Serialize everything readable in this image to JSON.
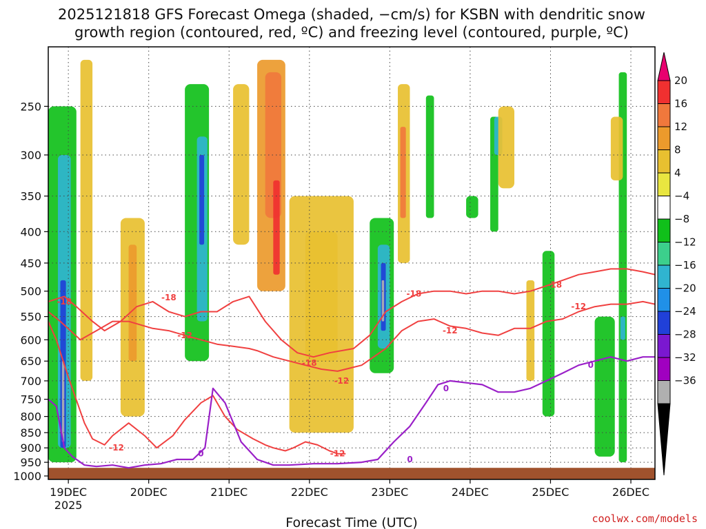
{
  "chart_data": {
    "type": "heatmap",
    "title_lines": [
      "2025121818 GFS Forecast Omega (shaded, −cm/s) for KSBN with dendritic snow",
      "growth region (contoured, red, ºC) and freezing level (contoured, purple, ºC)"
    ],
    "xlabel": "Forecast Time (UTC)",
    "ylabel": "",
    "source": "coolwx.com/models",
    "x_tick_labels": [
      "19DEC",
      "20DEC",
      "21DEC",
      "22DEC",
      "23DEC",
      "24DEC",
      "25DEC",
      "26DEC"
    ],
    "x_year_label": "2025",
    "y_tick_labels": [
      "250",
      "300",
      "350",
      "400",
      "450",
      "500",
      "550",
      "600",
      "650",
      "700",
      "750",
      "800",
      "850",
      "900",
      "950",
      "1000"
    ],
    "y_axis": {
      "units": "hPa",
      "range": [
        200,
        1013
      ],
      "inverted": true
    },
    "x_axis": {
      "units": "days since 2025-12-18 18UTC",
      "range": [
        0.0,
        7.55
      ]
    },
    "colorbar": {
      "labels": [
        "20",
        "16",
        "12",
        "8",
        "4",
        "−4",
        "−8",
        "−12",
        "−16",
        "−20",
        "−24",
        "−28",
        "−32",
        "−36"
      ],
      "colors": [
        "#e8006f",
        "#f03030",
        "#f0783c",
        "#ec9a2c",
        "#e8c030",
        "#e9e640",
        "#ffffff",
        "#10c01a",
        "#3ccf8c",
        "#30b4d0",
        "#2090e8",
        "#2040d8",
        "#7a18d0",
        "#a000c0",
        "#b0b0b0",
        "#000000"
      ]
    },
    "shading": [
      {
        "t": [
          0.0,
          0.35
        ],
        "p": [
          250,
          950
        ],
        "v": -8
      },
      {
        "t": [
          0.12,
          0.28
        ],
        "p": [
          300,
          900
        ],
        "v": -16
      },
      {
        "t": [
          0.15,
          0.22
        ],
        "p": [
          480,
          900
        ],
        "v": -24
      },
      {
        "t": [
          0.17,
          0.2
        ],
        "p": [
          650,
          880
        ],
        "v": -36
      },
      {
        "t": [
          0.4,
          0.55
        ],
        "p": [
          210,
          700
        ],
        "v": 6
      },
      {
        "t": [
          0.9,
          1.2
        ],
        "p": [
          380,
          800
        ],
        "v": 6
      },
      {
        "t": [
          1.0,
          1.1
        ],
        "p": [
          420,
          650
        ],
        "v": 10
      },
      {
        "t": [
          1.7,
          2.0
        ],
        "p": [
          230,
          650
        ],
        "v": -8
      },
      {
        "t": [
          1.85,
          1.98
        ],
        "p": [
          280,
          560
        ],
        "v": -16
      },
      {
        "t": [
          1.88,
          1.94
        ],
        "p": [
          300,
          420
        ],
        "v": -24
      },
      {
        "t": [
          2.3,
          2.5
        ],
        "p": [
          230,
          420
        ],
        "v": 6
      },
      {
        "t": [
          2.6,
          2.95
        ],
        "p": [
          210,
          500
        ],
        "v": 8
      },
      {
        "t": [
          2.7,
          2.9
        ],
        "p": [
          220,
          380
        ],
        "v": 12
      },
      {
        "t": [
          2.8,
          2.88
        ],
        "p": [
          330,
          470
        ],
        "v": 16
      },
      {
        "t": [
          3.0,
          3.8
        ],
        "p": [
          350,
          850
        ],
        "v": 5
      },
      {
        "t": [
          3.2,
          3.6
        ],
        "p": [
          400,
          650
        ],
        "v": 6
      },
      {
        "t": [
          4.0,
          4.3
        ],
        "p": [
          380,
          680
        ],
        "v": -8
      },
      {
        "t": [
          4.1,
          4.25
        ],
        "p": [
          420,
          620
        ],
        "v": -16
      },
      {
        "t": [
          4.14,
          4.2
        ],
        "p": [
          450,
          580
        ],
        "v": -24
      },
      {
        "t": [
          4.15,
          4.18
        ],
        "p": [
          480,
          560
        ],
        "v": -36
      },
      {
        "t": [
          4.35,
          4.5
        ],
        "p": [
          230,
          450
        ],
        "v": 6
      },
      {
        "t": [
          4.38,
          4.45
        ],
        "p": [
          270,
          380
        ],
        "v": 14
      },
      {
        "t": [
          4.7,
          4.8
        ],
        "p": [
          240,
          380
        ],
        "v": -8
      },
      {
        "t": [
          5.2,
          5.35
        ],
        "p": [
          350,
          380
        ],
        "v": -8
      },
      {
        "t": [
          5.5,
          5.6
        ],
        "p": [
          260,
          400
        ],
        "v": -8
      },
      {
        "t": [
          5.55,
          5.65
        ],
        "p": [
          260,
          300
        ],
        "v": -16
      },
      {
        "t": [
          5.6,
          5.8
        ],
        "p": [
          250,
          340
        ],
        "v": 6
      },
      {
        "t": [
          5.95,
          6.05
        ],
        "p": [
          480,
          700
        ],
        "v": 6
      },
      {
        "t": [
          6.15,
          6.3
        ],
        "p": [
          430,
          800
        ],
        "v": -8
      },
      {
        "t": [
          6.8,
          7.05
        ],
        "p": [
          550,
          930
        ],
        "v": -8
      },
      {
        "t": [
          7.1,
          7.2
        ],
        "p": [
          220,
          950
        ],
        "v": -8
      },
      {
        "t": [
          7.12,
          7.18
        ],
        "p": [
          550,
          600
        ],
        "v": -16
      },
      {
        "t": [
          7.0,
          7.15
        ],
        "p": [
          260,
          330
        ],
        "v": 6
      }
    ],
    "red_contour_labels": [
      "-18",
      "-18",
      "-12",
      "-12",
      "-18",
      "-12",
      "-12",
      "-18",
      "-12",
      "-18",
      "-12"
    ],
    "purple_contour_labels": [
      "0",
      "0",
      "0",
      "0"
    ],
    "series": [
      {
        "name": "dgz_minus12_upper",
        "x": [
          0.0,
          0.15,
          0.4,
          0.6,
          0.8,
          1.0,
          1.3,
          1.5,
          1.7,
          1.9,
          2.1,
          2.3,
          2.5,
          2.6,
          2.8,
          3.0,
          3.2,
          3.4,
          3.6,
          3.9,
          4.2,
          4.4,
          4.6,
          4.8,
          5.0,
          5.2,
          5.4,
          5.6,
          5.8,
          6.0,
          6.2,
          6.4,
          6.6,
          6.8,
          7.0,
          7.2,
          7.4,
          7.55
        ],
        "p": [
          540,
          560,
          600,
          580,
          560,
          560,
          575,
          580,
          590,
          600,
          610,
          615,
          620,
          625,
          640,
          650,
          660,
          670,
          675,
          660,
          620,
          580,
          560,
          555,
          570,
          575,
          585,
          590,
          575,
          575,
          560,
          555,
          540,
          530,
          525,
          525,
          520,
          525
        ]
      },
      {
        "name": "dgz_minus12_lower",
        "x": [
          0.0,
          0.1,
          0.25,
          0.45,
          0.55,
          0.7,
          0.8,
          1.0,
          1.2,
          1.35,
          1.55,
          1.7,
          1.9,
          2.05,
          2.2,
          2.35,
          2.55,
          2.7,
          2.8,
          2.95,
          3.05,
          3.2,
          3.35,
          3.5,
          3.6,
          3.7
        ],
        "p": [
          560,
          600,
          690,
          820,
          870,
          890,
          860,
          820,
          860,
          900,
          860,
          810,
          760,
          740,
          800,
          840,
          870,
          890,
          900,
          910,
          900,
          880,
          890,
          910,
          920,
          920
        ]
      },
      {
        "name": "dgz_minus18",
        "x": [
          0.0,
          0.2,
          0.35,
          0.55,
          0.7,
          0.9,
          1.1,
          1.3,
          1.5,
          1.7,
          1.9,
          2.1,
          2.3,
          2.5,
          2.7,
          2.9,
          3.1,
          3.3,
          3.5,
          3.8,
          4.0,
          4.2,
          4.4,
          4.6,
          4.8,
          5.0,
          5.2,
          5.4,
          5.6,
          5.8,
          6.0,
          6.2,
          6.4,
          6.6,
          6.8,
          7.0,
          7.2,
          7.4,
          7.55
        ],
        "p": [
          520,
          510,
          530,
          560,
          580,
          560,
          530,
          520,
          540,
          550,
          540,
          540,
          520,
          510,
          560,
          600,
          630,
          640,
          630,
          620,
          590,
          540,
          520,
          505,
          500,
          500,
          505,
          500,
          500,
          505,
          500,
          490,
          480,
          470,
          465,
          460,
          460,
          465,
          470
        ]
      },
      {
        "name": "freezing_level_0C",
        "x": [
          0.0,
          0.1,
          0.2,
          0.3,
          0.45,
          0.6,
          0.8,
          1.0,
          1.2,
          1.4,
          1.6,
          1.8,
          1.95,
          2.05,
          2.2,
          2.4,
          2.6,
          2.8,
          3.0,
          3.3,
          3.6,
          3.9,
          4.1,
          4.3,
          4.5,
          4.7,
          4.85,
          5.0,
          5.2,
          5.4,
          5.6,
          5.8,
          6.0,
          6.2,
          6.4,
          6.6,
          6.8,
          7.0,
          7.2,
          7.4,
          7.55
        ],
        "p": [
          750,
          770,
          900,
          930,
          960,
          965,
          960,
          970,
          960,
          955,
          940,
          940,
          900,
          720,
          760,
          880,
          940,
          960,
          960,
          955,
          955,
          950,
          940,
          880,
          830,
          760,
          710,
          700,
          705,
          710,
          730,
          730,
          720,
          700,
          680,
          660,
          650,
          640,
          650,
          640,
          640
        ]
      }
    ]
  }
}
